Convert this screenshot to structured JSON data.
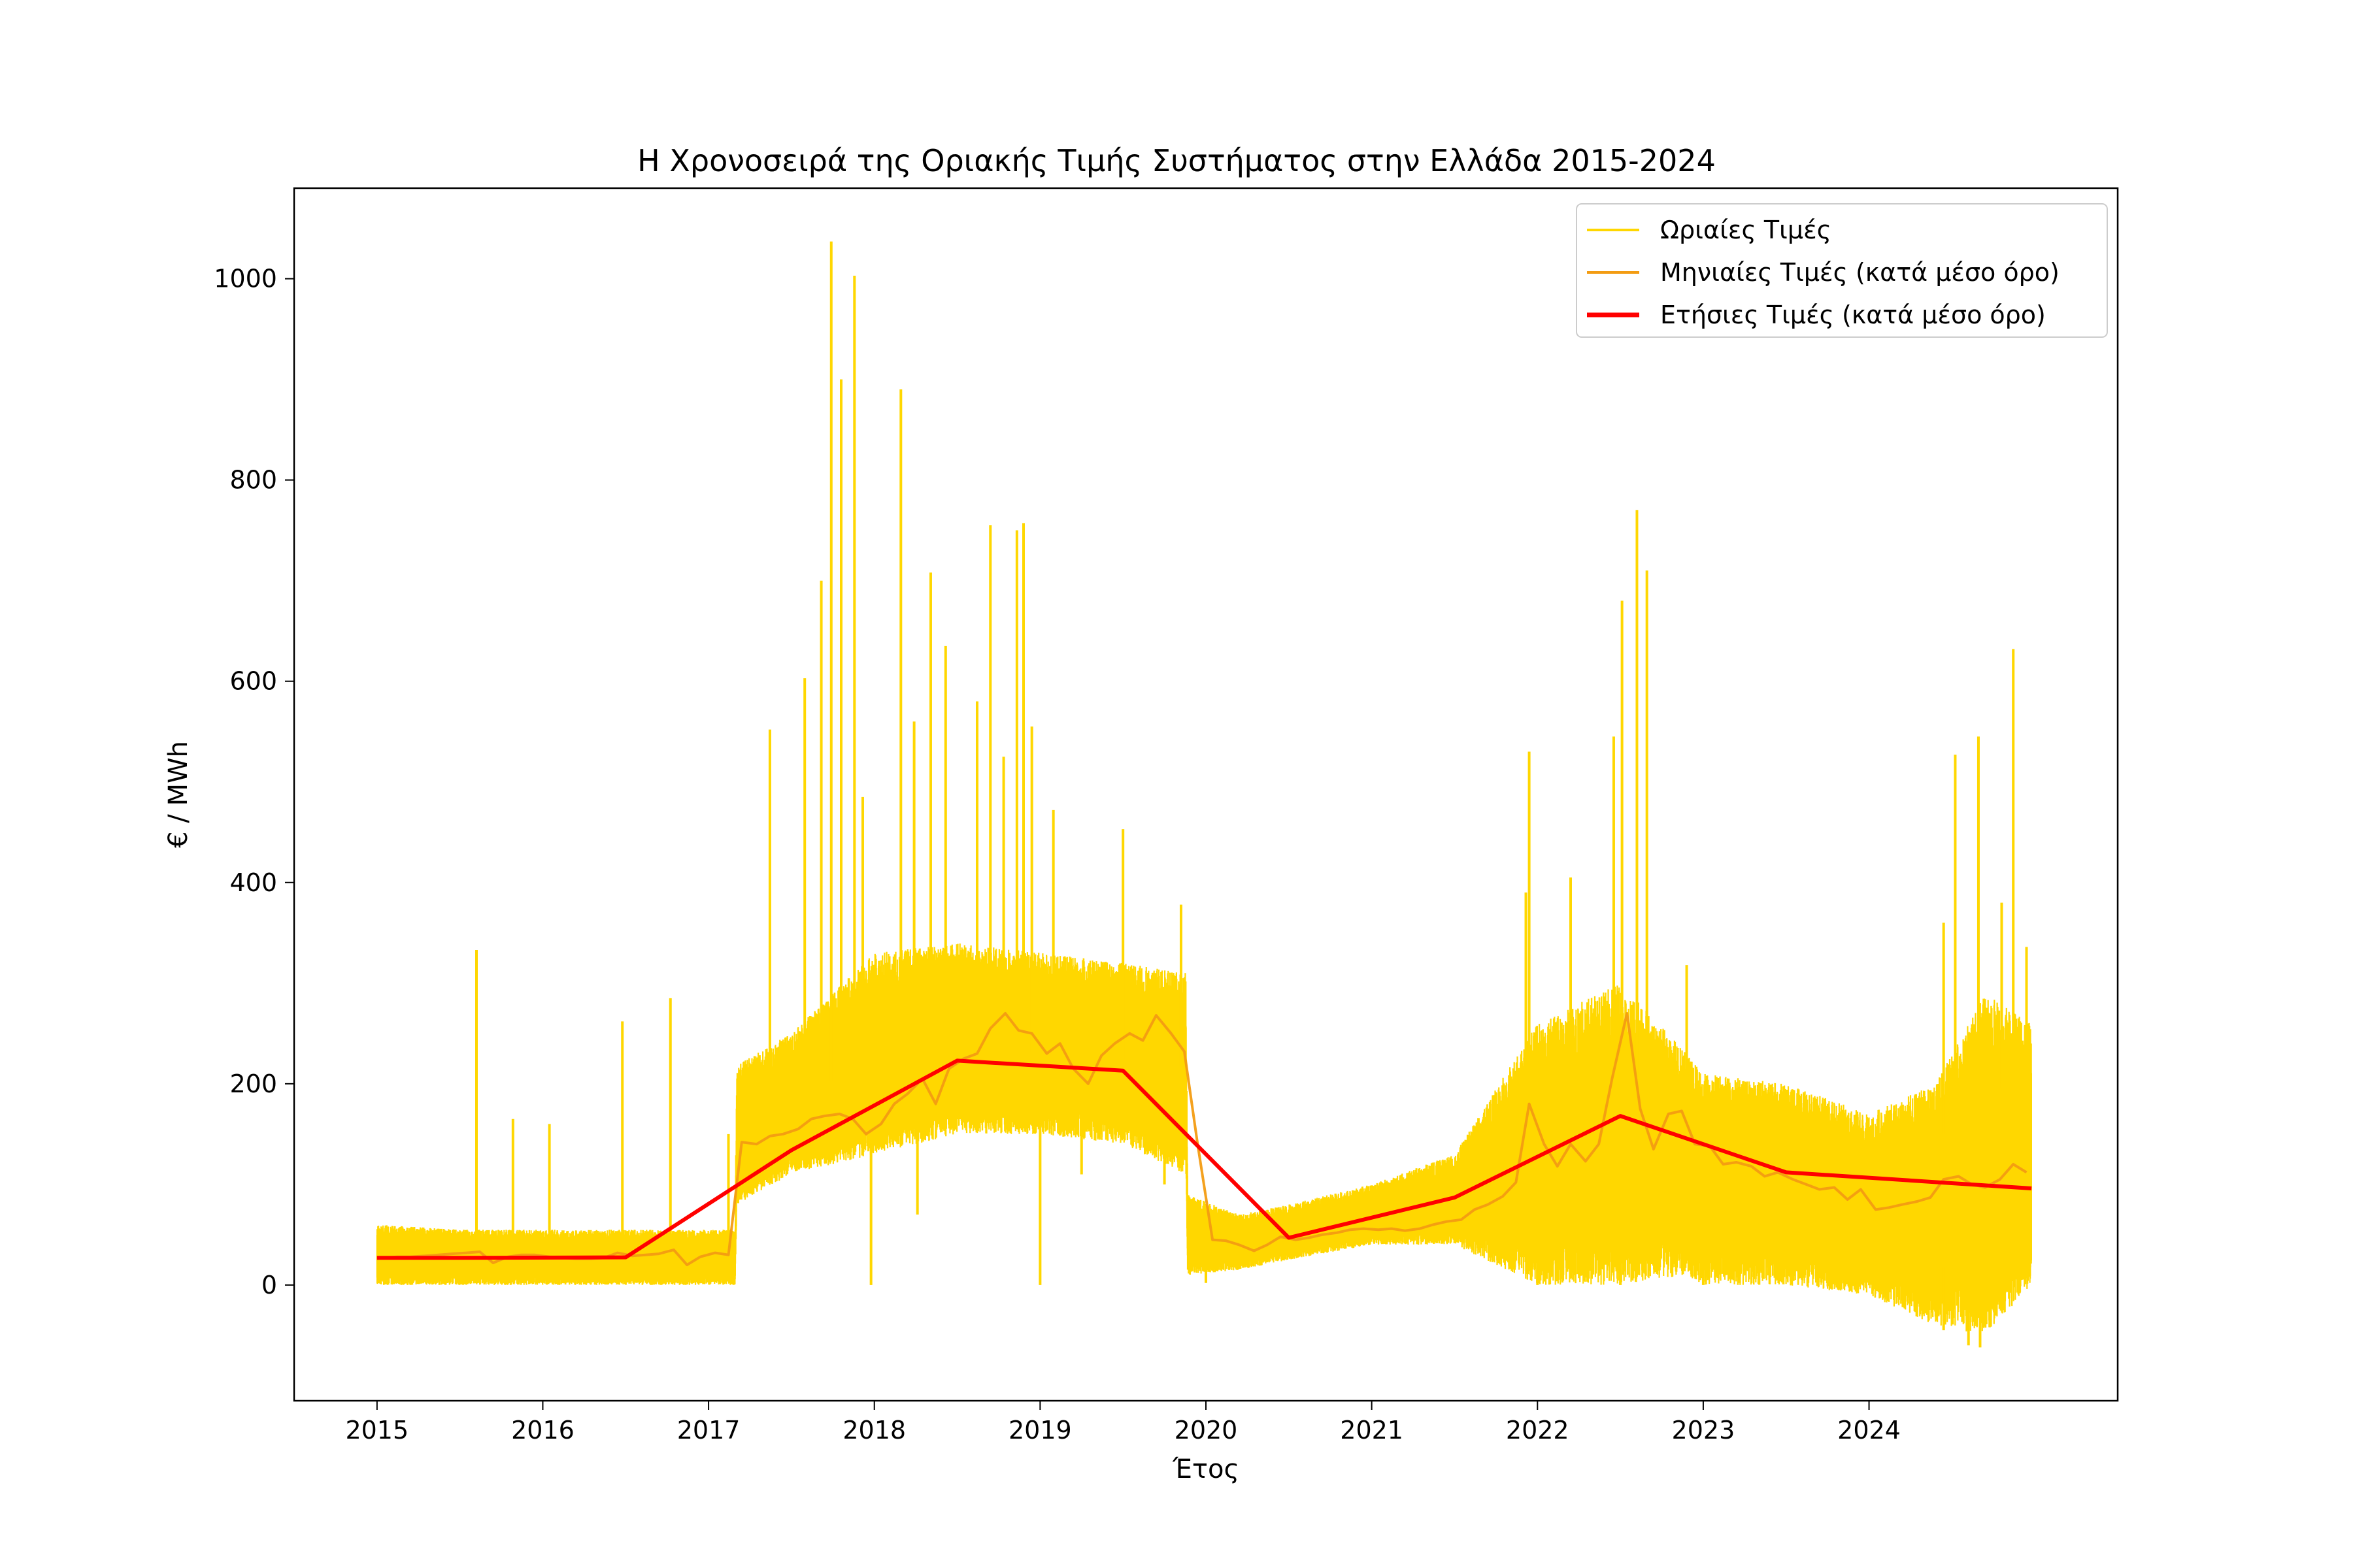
{
  "chart_data": {
    "type": "line",
    "title": "Η Χρονοσειρά της Οριακής Τιμής Συστήματος στην Ελλάδα 2015-2024",
    "xlabel": "Έτος",
    "ylabel": "€ / MWh",
    "xlim": [
      2014.5,
      2025.5
    ],
    "ylim": [
      -115,
      1090
    ],
    "x_ticks": [
      2015,
      2016,
      2017,
      2018,
      2019,
      2020,
      2021,
      2022,
      2023,
      2024
    ],
    "y_ticks": [
      0,
      200,
      400,
      600,
      800,
      1000
    ],
    "grid": false,
    "legend_position": "top-right",
    "series": [
      {
        "name": "Ωριαίες Τιμές",
        "color": "#FFD700",
        "style": "hourly-band",
        "envelope": {
          "x": [
            2015.0,
            2015.5,
            2016.0,
            2016.5,
            2017.0,
            2017.16,
            2017.17,
            2017.5,
            2018.0,
            2018.5,
            2019.0,
            2019.5,
            2019.88,
            2019.89,
            2020.2,
            2020.5,
            2021.0,
            2021.5,
            2022.0,
            2022.5,
            2022.9,
            2023.0,
            2023.5,
            2024.0,
            2024.4,
            2024.7,
            2024.98
          ],
          "upper": [
            60,
            55,
            55,
            55,
            55,
            55,
            220,
            250,
            330,
            340,
            330,
            320,
            310,
            90,
            70,
            80,
            100,
            130,
            260,
            300,
            230,
            210,
            200,
            170,
            200,
            290,
            260
          ],
          "lower": [
            0,
            0,
            0,
            0,
            0,
            0,
            80,
            110,
            130,
            150,
            150,
            140,
            110,
            10,
            15,
            25,
            40,
            40,
            0,
            0,
            10,
            0,
            0,
            -10,
            -40,
            -50,
            0
          ]
        },
        "spikes": [
          {
            "x": 2015.6,
            "y": 333
          },
          {
            "x": 2015.82,
            "y": 165
          },
          {
            "x": 2016.04,
            "y": 160
          },
          {
            "x": 2016.48,
            "y": 262
          },
          {
            "x": 2016.77,
            "y": 285
          },
          {
            "x": 2017.12,
            "y": 150
          },
          {
            "x": 2017.37,
            "y": 552
          },
          {
            "x": 2017.58,
            "y": 603
          },
          {
            "x": 2017.68,
            "y": 700
          },
          {
            "x": 2017.74,
            "y": 1037
          },
          {
            "x": 2017.8,
            "y": 900
          },
          {
            "x": 2017.88,
            "y": 1003
          },
          {
            "x": 2017.93,
            "y": 485
          },
          {
            "x": 2018.16,
            "y": 890
          },
          {
            "x": 2018.24,
            "y": 560
          },
          {
            "x": 2018.34,
            "y": 708
          },
          {
            "x": 2018.43,
            "y": 635
          },
          {
            "x": 2018.62,
            "y": 580
          },
          {
            "x": 2018.7,
            "y": 755
          },
          {
            "x": 2018.78,
            "y": 525
          },
          {
            "x": 2018.86,
            "y": 750
          },
          {
            "x": 2018.9,
            "y": 757
          },
          {
            "x": 2018.95,
            "y": 555
          },
          {
            "x": 2019.08,
            "y": 472
          },
          {
            "x": 2019.5,
            "y": 453
          },
          {
            "x": 2019.85,
            "y": 378
          },
          {
            "x": 2021.95,
            "y": 530
          },
          {
            "x": 2021.93,
            "y": 390
          },
          {
            "x": 2022.2,
            "y": 405
          },
          {
            "x": 2022.46,
            "y": 545
          },
          {
            "x": 2022.51,
            "y": 680
          },
          {
            "x": 2022.6,
            "y": 770
          },
          {
            "x": 2022.66,
            "y": 710
          },
          {
            "x": 2022.9,
            "y": 318
          },
          {
            "x": 2024.45,
            "y": 360
          },
          {
            "x": 2024.52,
            "y": 527
          },
          {
            "x": 2024.66,
            "y": 545
          },
          {
            "x": 2024.8,
            "y": 380
          },
          {
            "x": 2024.87,
            "y": 632
          },
          {
            "x": 2024.95,
            "y": 336
          }
        ],
        "dips": [
          {
            "x": 2017.98,
            "y": 0
          },
          {
            "x": 2018.26,
            "y": 70
          },
          {
            "x": 2019.0,
            "y": 0
          },
          {
            "x": 2019.25,
            "y": 110
          },
          {
            "x": 2019.75,
            "y": 100
          },
          {
            "x": 2020.0,
            "y": 2
          },
          {
            "x": 2022.0,
            "y": 0
          },
          {
            "x": 2022.5,
            "y": 0
          },
          {
            "x": 2023.0,
            "y": 0
          },
          {
            "x": 2024.45,
            "y": -45
          },
          {
            "x": 2024.6,
            "y": -60
          },
          {
            "x": 2024.67,
            "y": -62
          }
        ]
      },
      {
        "name": "Μηνιαίες Τιμές (κατά μέσο όρο)",
        "color": "#F39C12",
        "x": [
          2015.04,
          2015.12,
          2015.2,
          2015.29,
          2015.37,
          2015.45,
          2015.54,
          2015.62,
          2015.7,
          2015.79,
          2015.87,
          2015.95,
          2016.04,
          2016.12,
          2016.2,
          2016.29,
          2016.37,
          2016.45,
          2016.54,
          2016.62,
          2016.7,
          2016.79,
          2016.87,
          2016.95,
          2017.04,
          2017.12,
          2017.2,
          2017.29,
          2017.37,
          2017.45,
          2017.54,
          2017.62,
          2017.7,
          2017.79,
          2017.87,
          2017.95,
          2018.04,
          2018.12,
          2018.2,
          2018.29,
          2018.37,
          2018.45,
          2018.54,
          2018.62,
          2018.7,
          2018.79,
          2018.87,
          2018.95,
          2019.04,
          2019.12,
          2019.2,
          2019.29,
          2019.37,
          2019.45,
          2019.54,
          2019.62,
          2019.7,
          2019.79,
          2019.87,
          2019.95,
          2020.04,
          2020.12,
          2020.2,
          2020.29,
          2020.37,
          2020.45,
          2020.54,
          2020.62,
          2020.7,
          2020.79,
          2020.87,
          2020.95,
          2021.04,
          2021.12,
          2021.2,
          2021.29,
          2021.37,
          2021.45,
          2021.54,
          2021.62,
          2021.7,
          2021.79,
          2021.87,
          2021.95,
          2022.04,
          2022.12,
          2022.2,
          2022.29,
          2022.37,
          2022.45,
          2022.54,
          2022.62,
          2022.7,
          2022.79,
          2022.87,
          2022.95,
          2023.04,
          2023.12,
          2023.2,
          2023.29,
          2023.37,
          2023.45,
          2023.54,
          2023.62,
          2023.7,
          2023.79,
          2023.87,
          2023.95,
          2024.04,
          2024.12,
          2024.2,
          2024.29,
          2024.37,
          2024.45,
          2024.54,
          2024.62,
          2024.7,
          2024.79,
          2024.87,
          2024.95
        ],
        "y": [
          27,
          28,
          28,
          29,
          30,
          31,
          32,
          33,
          22,
          28,
          30,
          30,
          28,
          27,
          26,
          26,
          27,
          32,
          29,
          30,
          31,
          35,
          20,
          28,
          32,
          30,
          142,
          140,
          148,
          150,
          155,
          165,
          168,
          170,
          165,
          150,
          160,
          180,
          190,
          205,
          180,
          215,
          225,
          230,
          255,
          270,
          253,
          250,
          230,
          240,
          215,
          200,
          228,
          240,
          250,
          243,
          268,
          250,
          232,
          140,
          45,
          44,
          40,
          34,
          40,
          48,
          45,
          47,
          50,
          52,
          55,
          56,
          55,
          56,
          54,
          56,
          60,
          63,
          65,
          75,
          80,
          88,
          102,
          180,
          140,
          118,
          140,
          123,
          140,
          205,
          270,
          175,
          135,
          170,
          173,
          140,
          138,
          120,
          122,
          118,
          108,
          112,
          105,
          100,
          95,
          97,
          85,
          95,
          75,
          77,
          80,
          83,
          87,
          105,
          108,
          100,
          97,
          105,
          120,
          112
        ]
      },
      {
        "name": "Ετήσιες Τιμές (κατά μέσο όρο)",
        "color": "#FF0000",
        "x": [
          2015.0,
          2015.5,
          2016.5,
          2017.5,
          2018.5,
          2019.5,
          2020.5,
          2021.5,
          2022.5,
          2023.5,
          2024.98
        ],
        "y": [
          27,
          27,
          27.5,
          134,
          223,
          213,
          47,
          87,
          168,
          112,
          96
        ]
      }
    ]
  }
}
